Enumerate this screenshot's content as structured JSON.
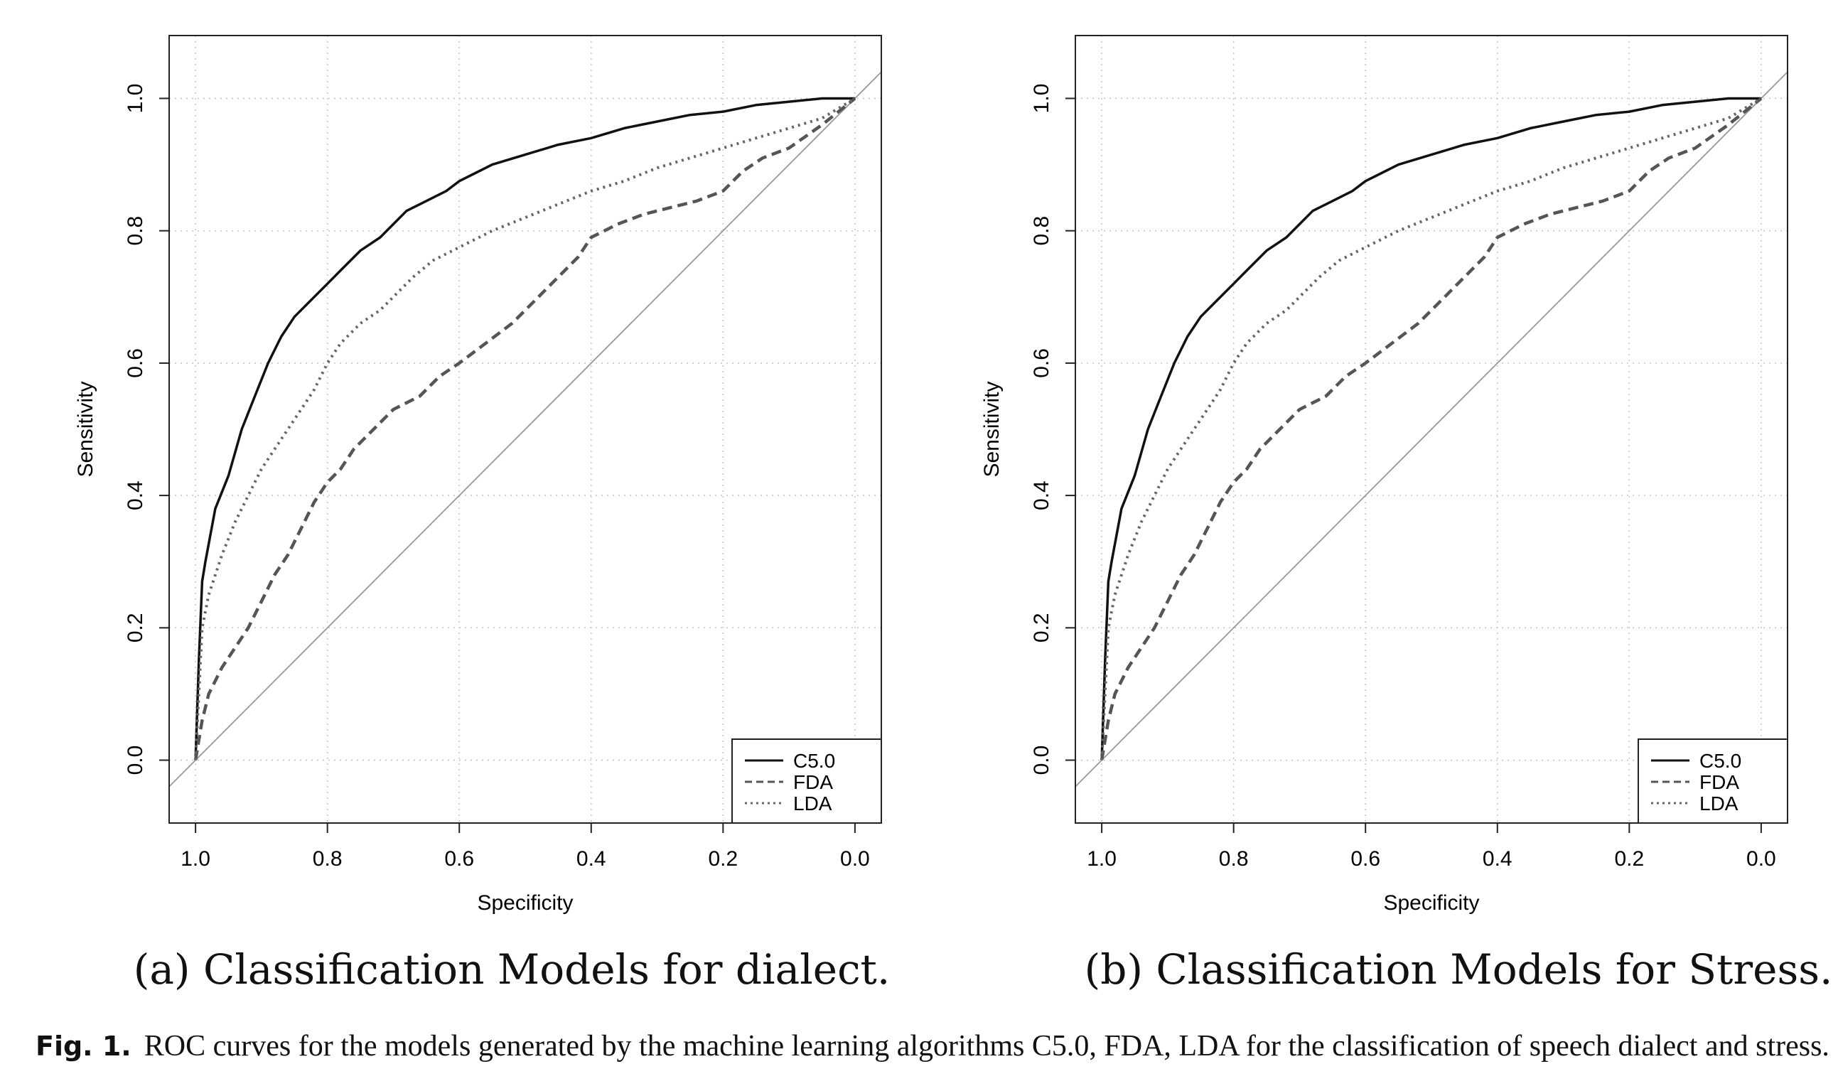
{
  "figure_caption": {
    "label": "Fig. 1.",
    "text": "ROC curves for the models generated by the machine learning algorithms C5.0, FDA, LDA for the classification of speech dialect and stress."
  },
  "chart_data": [
    {
      "type": "line",
      "panel_caption": "(a) Classification Models for dialect.",
      "xlabel": "Specificity",
      "ylabel": "Sensitivity",
      "xlim": [
        1.04,
        -0.04
      ],
      "ylim": [
        -0.095,
        1.095
      ],
      "x_ticks": [
        "1.0",
        "0.8",
        "0.6",
        "0.4",
        "0.2",
        "0.0"
      ],
      "y_ticks": [
        "0.0",
        "0.2",
        "0.4",
        "0.6",
        "0.8",
        "1.0"
      ],
      "grid": true,
      "legend_position": "bottom-right",
      "reference_line": [
        [
          1.04,
          -0.04
        ],
        [
          -0.04,
          1.04
        ]
      ],
      "series": [
        {
          "name": "C5.0",
          "style": "solid",
          "x": [
            1.0,
            0.995,
            0.99,
            0.985,
            0.97,
            0.95,
            0.93,
            0.91,
            0.89,
            0.87,
            0.85,
            0.83,
            0.8,
            0.78,
            0.75,
            0.72,
            0.7,
            0.68,
            0.65,
            0.62,
            0.6,
            0.58,
            0.55,
            0.5,
            0.45,
            0.4,
            0.35,
            0.3,
            0.25,
            0.2,
            0.15,
            0.1,
            0.05,
            0.0
          ],
          "y": [
            0.0,
            0.15,
            0.27,
            0.3,
            0.38,
            0.43,
            0.5,
            0.55,
            0.6,
            0.64,
            0.67,
            0.69,
            0.72,
            0.74,
            0.77,
            0.79,
            0.81,
            0.83,
            0.845,
            0.86,
            0.875,
            0.885,
            0.9,
            0.915,
            0.93,
            0.94,
            0.955,
            0.965,
            0.975,
            0.98,
            0.99,
            0.995,
            1.0,
            1.0
          ]
        },
        {
          "name": "FDA",
          "style": "dashed",
          "x": [
            1.0,
            0.99,
            0.98,
            0.96,
            0.94,
            0.92,
            0.9,
            0.88,
            0.86,
            0.84,
            0.82,
            0.8,
            0.78,
            0.76,
            0.73,
            0.7,
            0.66,
            0.63,
            0.6,
            0.56,
            0.52,
            0.48,
            0.45,
            0.42,
            0.4,
            0.36,
            0.32,
            0.28,
            0.24,
            0.2,
            0.17,
            0.14,
            0.1,
            0.05,
            0.0
          ],
          "y": [
            0.0,
            0.06,
            0.1,
            0.14,
            0.17,
            0.2,
            0.24,
            0.28,
            0.31,
            0.35,
            0.39,
            0.42,
            0.44,
            0.47,
            0.5,
            0.53,
            0.55,
            0.58,
            0.6,
            0.63,
            0.66,
            0.7,
            0.73,
            0.76,
            0.79,
            0.81,
            0.825,
            0.835,
            0.845,
            0.86,
            0.89,
            0.91,
            0.925,
            0.96,
            1.0
          ]
        },
        {
          "name": "LDA",
          "style": "dotted",
          "x": [
            1.0,
            0.995,
            0.99,
            0.98,
            0.96,
            0.94,
            0.92,
            0.9,
            0.88,
            0.86,
            0.84,
            0.82,
            0.8,
            0.78,
            0.75,
            0.72,
            0.7,
            0.67,
            0.64,
            0.6,
            0.55,
            0.5,
            0.45,
            0.4,
            0.35,
            0.3,
            0.25,
            0.2,
            0.15,
            0.1,
            0.05,
            0.0
          ],
          "y": [
            0.0,
            0.1,
            0.2,
            0.25,
            0.31,
            0.36,
            0.4,
            0.44,
            0.47,
            0.5,
            0.53,
            0.56,
            0.6,
            0.63,
            0.66,
            0.68,
            0.7,
            0.73,
            0.755,
            0.775,
            0.8,
            0.82,
            0.84,
            0.86,
            0.875,
            0.895,
            0.91,
            0.925,
            0.94,
            0.955,
            0.97,
            1.0
          ]
        }
      ]
    },
    {
      "type": "line",
      "panel_caption": "(b) Classification Models for Stress.",
      "xlabel": "Specificity",
      "ylabel": "Sensitivity",
      "xlim": [
        1.04,
        -0.04
      ],
      "ylim": [
        -0.095,
        1.095
      ],
      "x_ticks": [
        "1.0",
        "0.8",
        "0.6",
        "0.4",
        "0.2",
        "0.0"
      ],
      "y_ticks": [
        "0.0",
        "0.2",
        "0.4",
        "0.6",
        "0.8",
        "1.0"
      ],
      "grid": true,
      "legend_position": "bottom-right",
      "reference_line": [
        [
          1.04,
          -0.04
        ],
        [
          -0.04,
          1.04
        ]
      ],
      "series": [
        {
          "name": "C5.0",
          "style": "solid",
          "x": [
            1.0,
            0.995,
            0.99,
            0.985,
            0.97,
            0.95,
            0.93,
            0.91,
            0.89,
            0.87,
            0.85,
            0.83,
            0.8,
            0.78,
            0.75,
            0.72,
            0.7,
            0.68,
            0.65,
            0.62,
            0.6,
            0.58,
            0.55,
            0.5,
            0.45,
            0.4,
            0.35,
            0.3,
            0.25,
            0.2,
            0.15,
            0.1,
            0.05,
            0.0
          ],
          "y": [
            0.0,
            0.15,
            0.27,
            0.3,
            0.38,
            0.43,
            0.5,
            0.55,
            0.6,
            0.64,
            0.67,
            0.69,
            0.72,
            0.74,
            0.77,
            0.79,
            0.81,
            0.83,
            0.845,
            0.86,
            0.875,
            0.885,
            0.9,
            0.915,
            0.93,
            0.94,
            0.955,
            0.965,
            0.975,
            0.98,
            0.99,
            0.995,
            1.0,
            1.0
          ]
        },
        {
          "name": "FDA",
          "style": "dashed",
          "x": [
            1.0,
            0.99,
            0.98,
            0.96,
            0.94,
            0.92,
            0.9,
            0.88,
            0.86,
            0.84,
            0.82,
            0.8,
            0.78,
            0.76,
            0.73,
            0.7,
            0.66,
            0.63,
            0.6,
            0.56,
            0.52,
            0.48,
            0.45,
            0.42,
            0.4,
            0.36,
            0.32,
            0.28,
            0.24,
            0.2,
            0.17,
            0.14,
            0.1,
            0.05,
            0.0
          ],
          "y": [
            0.0,
            0.06,
            0.1,
            0.14,
            0.17,
            0.2,
            0.24,
            0.28,
            0.31,
            0.35,
            0.39,
            0.42,
            0.44,
            0.47,
            0.5,
            0.53,
            0.55,
            0.58,
            0.6,
            0.63,
            0.66,
            0.7,
            0.73,
            0.76,
            0.79,
            0.81,
            0.825,
            0.835,
            0.845,
            0.86,
            0.89,
            0.91,
            0.925,
            0.96,
            1.0
          ]
        },
        {
          "name": "LDA",
          "style": "dotted",
          "x": [
            1.0,
            0.995,
            0.99,
            0.98,
            0.96,
            0.94,
            0.92,
            0.9,
            0.88,
            0.86,
            0.84,
            0.82,
            0.8,
            0.78,
            0.75,
            0.72,
            0.7,
            0.67,
            0.64,
            0.6,
            0.55,
            0.5,
            0.45,
            0.4,
            0.35,
            0.3,
            0.25,
            0.2,
            0.15,
            0.1,
            0.05,
            0.0
          ],
          "y": [
            0.0,
            0.1,
            0.2,
            0.25,
            0.31,
            0.36,
            0.4,
            0.44,
            0.47,
            0.5,
            0.53,
            0.56,
            0.6,
            0.63,
            0.66,
            0.68,
            0.7,
            0.73,
            0.755,
            0.775,
            0.8,
            0.82,
            0.84,
            0.86,
            0.875,
            0.895,
            0.91,
            0.925,
            0.94,
            0.955,
            0.97,
            1.0
          ]
        }
      ]
    }
  ]
}
